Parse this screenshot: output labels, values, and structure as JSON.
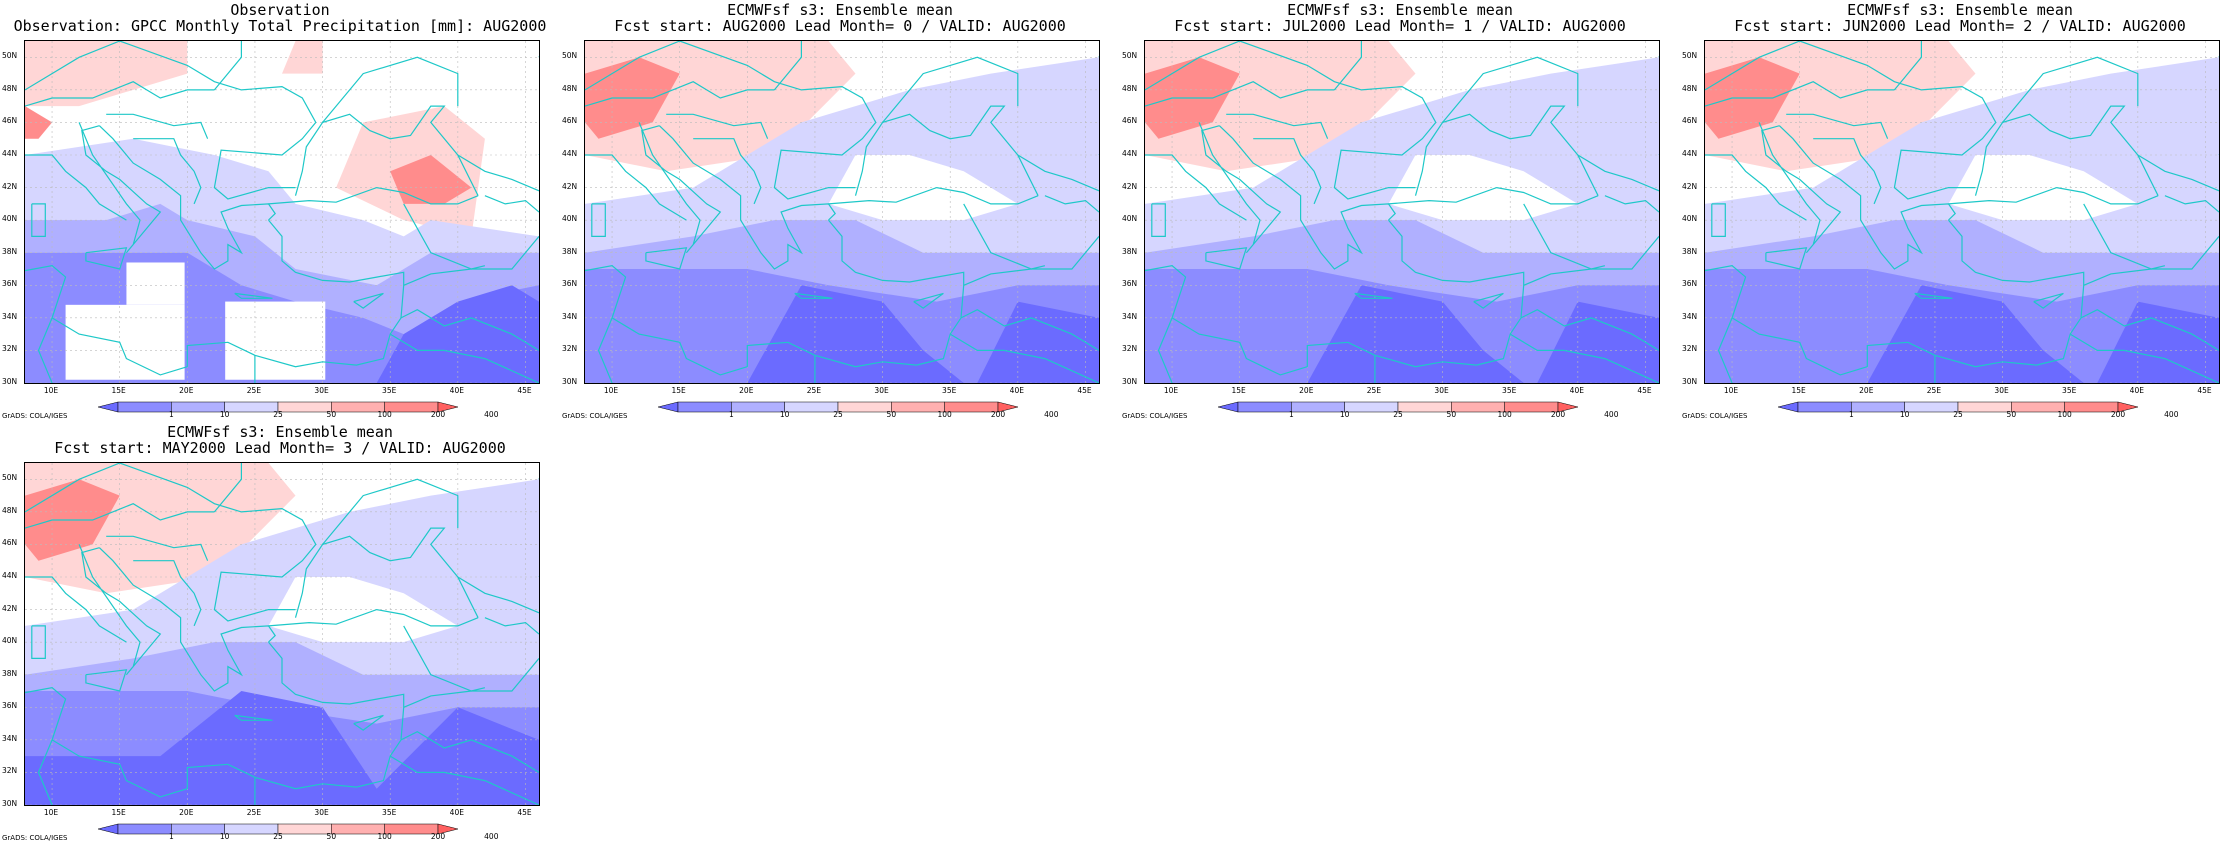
{
  "panels": [
    {
      "line1": "Observation",
      "line2": "Observation: GPCC Monthly Total Precipitation [mm]: AUG2000",
      "variant": "obs"
    },
    {
      "line1": "ECMWFsf s3: Ensemble mean",
      "line2": "Fcst start: AUG2000  Lead Month= 0 / VALID: AUG2000",
      "variant": "f0"
    },
    {
      "line1": "ECMWFsf s3: Ensemble mean",
      "line2": "Fcst start: JUL2000  Lead Month= 1 / VALID: AUG2000",
      "variant": "f1"
    },
    {
      "line1": "ECMWFsf s3: Ensemble mean",
      "line2": "Fcst start: JUN2000  Lead Month= 2 / VALID: AUG2000",
      "variant": "f2"
    },
    {
      "line1": "ECMWFsf s3: Ensemble mean",
      "line2": "Fcst start: MAY2000  Lead Month= 3 / VALID: AUG2000",
      "variant": "f3"
    }
  ],
  "lat_labels": [
    "50N",
    "48N",
    "46N",
    "44N",
    "42N",
    "40N",
    "38N",
    "36N",
    "34N",
    "32N",
    "30N"
  ],
  "lon_labels": [
    "10E",
    "15E",
    "20E",
    "25E",
    "30E",
    "35E",
    "40E",
    "45E"
  ],
  "colorbar": {
    "labels": [
      "1",
      "10",
      "25",
      "50",
      "100",
      "200",
      "400"
    ],
    "colors": [
      "#6b6bff",
      "#8c8cff",
      "#b0b0ff",
      "#d6d6ff",
      "#ffd6d6",
      "#ffb0b0",
      "#ff8c8c",
      "#ff6060"
    ]
  },
  "credit": "GrADS: COLA/IGES",
  "colors": {
    "coast": "#1ec8c8",
    "grid": "#bbbbbb"
  }
}
